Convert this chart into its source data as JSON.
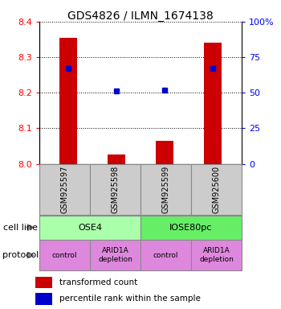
{
  "title": "GDS4826 / ILMN_1674138",
  "samples": [
    "GSM925597",
    "GSM925598",
    "GSM925599",
    "GSM925600"
  ],
  "transformed_counts": [
    8.355,
    8.025,
    8.065,
    8.34
  ],
  "percentile_ranks": [
    67,
    51,
    52,
    67
  ],
  "ylim_left": [
    8.0,
    8.4
  ],
  "ylim_right": [
    0,
    100
  ],
  "yticks_left": [
    8.0,
    8.1,
    8.2,
    8.3,
    8.4
  ],
  "yticks_right": [
    0,
    25,
    50,
    75,
    100
  ],
  "ytick_labels_right": [
    "0",
    "25",
    "50",
    "75",
    "100%"
  ],
  "bar_color": "#cc0000",
  "dot_color": "#0000cc",
  "cell_lines": [
    [
      "OSE4",
      0,
      2
    ],
    [
      "IOSE80pc",
      2,
      4
    ]
  ],
  "cell_line_colors": [
    "#aaffaa",
    "#66ee66"
  ],
  "protocols": [
    [
      "control",
      0,
      1
    ],
    [
      "ARID1A\ndepletion",
      1,
      2
    ],
    [
      "control",
      2,
      3
    ],
    [
      "ARID1A\ndepletion",
      3,
      4
    ]
  ],
  "protocol_color": "#dd88dd",
  "sample_box_color": "#cccccc",
  "legend_bar_color": "#cc0000",
  "legend_dot_color": "#0000cc",
  "fig_width": 3.5,
  "fig_height": 3.84,
  "dpi": 100
}
